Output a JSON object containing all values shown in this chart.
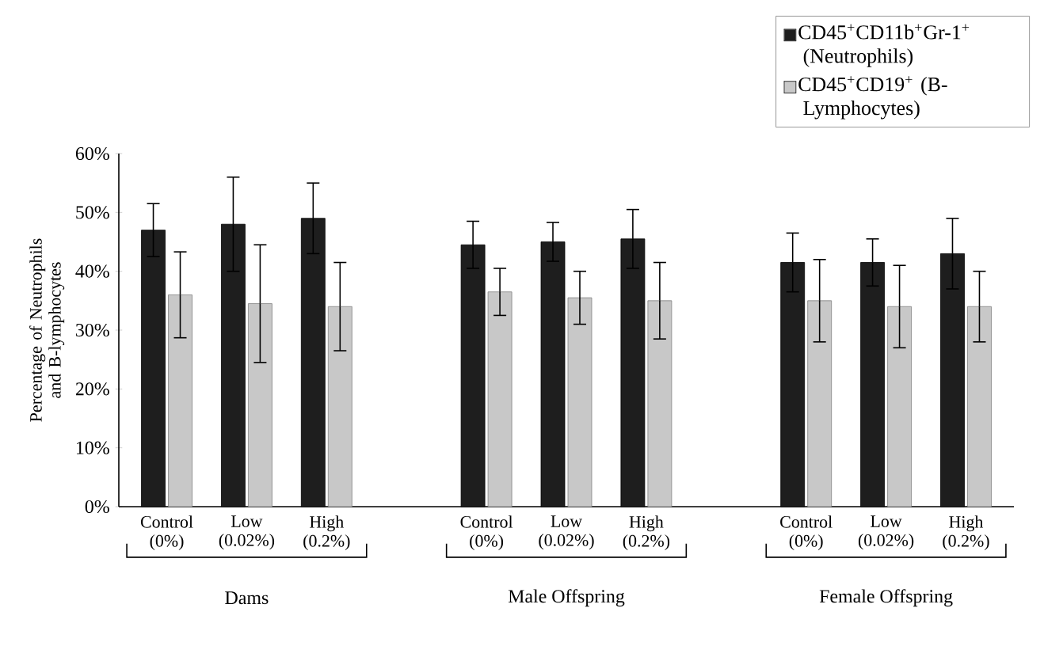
{
  "chart_data": {
    "type": "bar",
    "ylabel": "Percentage of Neutrophils and B-lymphocytes",
    "categories": [
      "Control (0%)",
      "Low (0.02%)",
      "High (0.2%)",
      null,
      "Control (0%)",
      "Low (0.02%)",
      "High (0.2%)",
      null,
      "Control (0%)",
      "Low (0.02%)",
      "High (0.2%)"
    ],
    "series": [
      {
        "name": "CD45$^{+}$CD11b$^{+}$Gr-1$^{+}$ (Neutrophils)",
        "color": "#1e1e1e",
        "values": [
          47,
          48,
          49,
          null,
          44.5,
          45,
          45.5,
          null,
          41.5,
          41.5,
          43
        ],
        "errors": [
          4.5,
          8,
          6,
          null,
          4,
          3.3,
          5,
          null,
          5,
          4,
          6
        ]
      },
      {
        "name": "CD45$^{+}$CD19$^{+}$ (B-Lymphocytes)",
        "color": "#c8c8c8",
        "values": [
          36,
          34.5,
          34,
          null,
          36.5,
          35.5,
          35,
          null,
          35,
          34,
          34
        ],
        "errors": [
          7.3,
          10,
          7.5,
          null,
          4,
          4.5,
          6.5,
          null,
          7,
          7,
          6
        ]
      }
    ],
    "ylim": [
      0,
      60
    ],
    "yticks": [
      {
        "value": 0,
        "label": "0%"
      },
      {
        "value": 10,
        "label": "10%"
      },
      {
        "value": 20,
        "label": "20%"
      },
      {
        "value": 30,
        "label": "30%"
      },
      {
        "value": 40,
        "label": "40%"
      },
      {
        "value": 50,
        "label": "50%"
      },
      {
        "value": 60,
        "label": "60%"
      }
    ],
    "annotations": [
      "Dams",
      "Male Offspring",
      "Female Offspring"
    ],
    "legend": "top right",
    "grid": false
  }
}
